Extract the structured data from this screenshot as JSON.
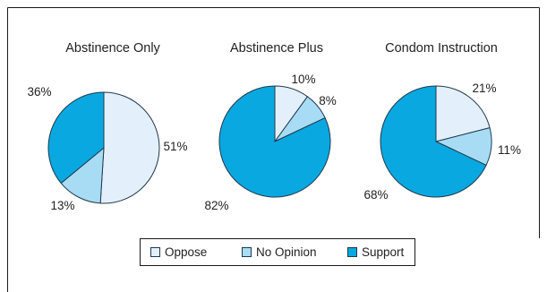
{
  "chart_data": {
    "type": "pie",
    "series_names": [
      "Oppose",
      "No Opinion",
      "Support"
    ],
    "colors": {
      "Oppose": "#e3f0fb",
      "No Opinion": "#a8dcf5",
      "Support": "#0aa8e0",
      "border": "#1f3a4d"
    },
    "legend": {
      "placement": "bottom-center",
      "items": [
        {
          "label": "Oppose",
          "color": "#e3f0fb"
        },
        {
          "label": "No Opinion",
          "color": "#a8dcf5"
        },
        {
          "label": "Support",
          "color": "#0aa8e0"
        }
      ]
    },
    "pies": [
      {
        "title": "Abstinence Only",
        "slices": [
          {
            "name": "Oppose",
            "value": 51,
            "label": "51%"
          },
          {
            "name": "No Opinion",
            "value": 13,
            "label": "13%"
          },
          {
            "name": "Support",
            "value": 36,
            "label": "36%"
          }
        ]
      },
      {
        "title": "Abstinence Plus",
        "slices": [
          {
            "name": "Oppose",
            "value": 10,
            "label": "10%"
          },
          {
            "name": "No Opinion",
            "value": 8,
            "label": "8%"
          },
          {
            "name": "Support",
            "value": 82,
            "label": "82%"
          }
        ]
      },
      {
        "title": "Condom Instruction",
        "slices": [
          {
            "name": "Oppose",
            "value": 21,
            "label": "21%"
          },
          {
            "name": "No Opinion",
            "value": 11,
            "label": "11%"
          },
          {
            "name": "Support",
            "value": 68,
            "label": "68%"
          }
        ]
      }
    ]
  }
}
